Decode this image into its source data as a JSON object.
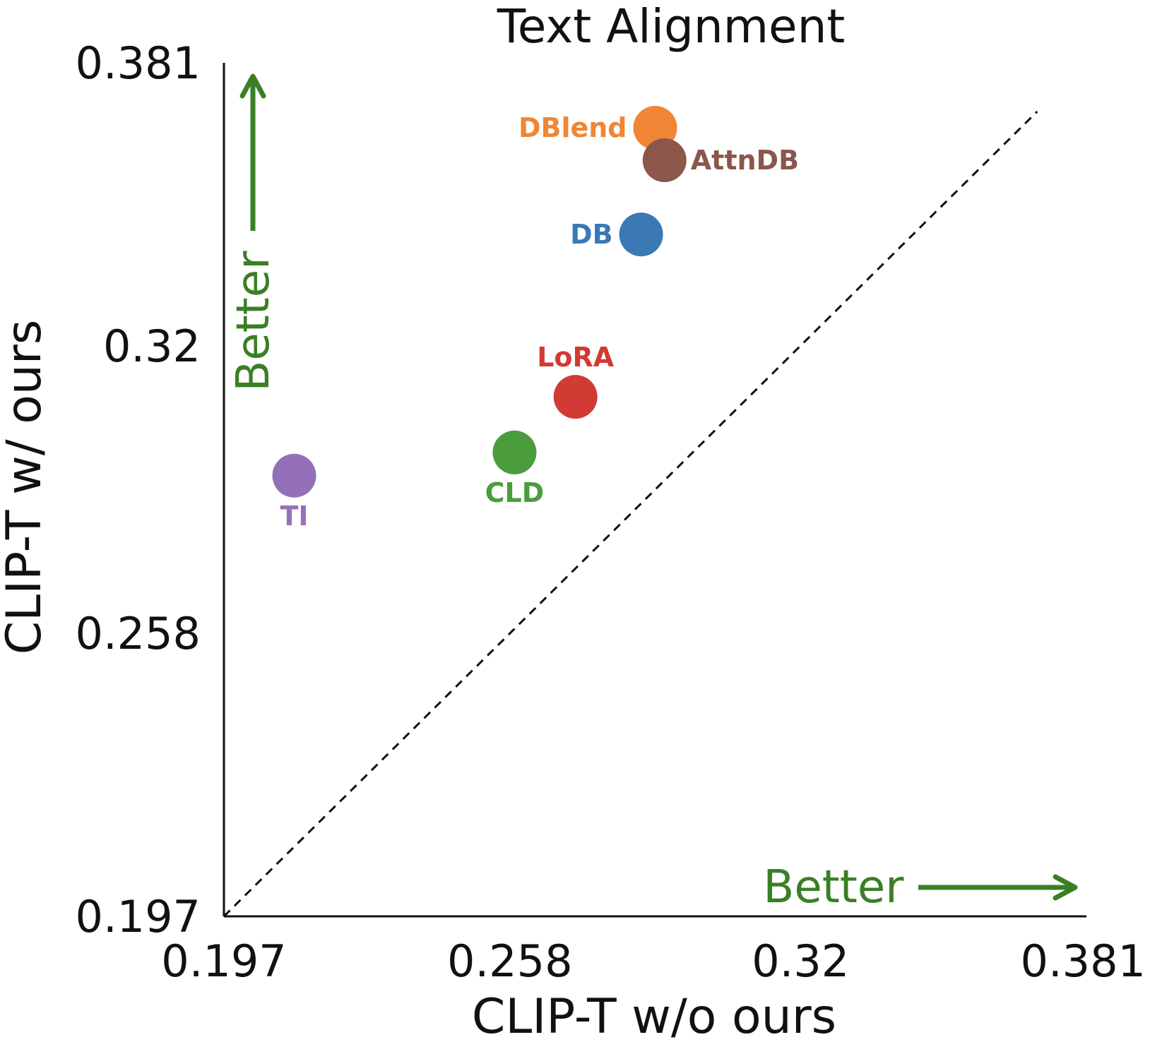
{
  "chart_data": {
    "type": "scatter",
    "title": "Text Alignment",
    "xlabel": "CLIP-T w/o ours",
    "ylabel": "CLIP-T w/ ours",
    "xlim": [
      0.197,
      0.381
    ],
    "ylim": [
      0.197,
      0.381
    ],
    "xticks": [
      "0.197",
      "0.258",
      "0.32",
      "0.381"
    ],
    "yticks": [
      "0.197",
      "0.258",
      "0.32",
      "0.381"
    ],
    "grid": false,
    "reference_line": "y = x (dashed)",
    "better_label": "Better",
    "better_color": "#3a7f26",
    "points": [
      {
        "label": "DBlend",
        "x": 0.289,
        "y": 0.367,
        "color": "#f08536"
      },
      {
        "label": "AttnDB",
        "x": 0.291,
        "y": 0.36,
        "color": "#8c564b"
      },
      {
        "label": "DB",
        "x": 0.286,
        "y": 0.344,
        "color": "#3a78b6"
      },
      {
        "label": "LoRA",
        "x": 0.272,
        "y": 0.309,
        "color": "#d23a34"
      },
      {
        "label": "CLD",
        "x": 0.259,
        "y": 0.297,
        "color": "#4b9c3d"
      },
      {
        "label": "TI",
        "x": 0.212,
        "y": 0.292,
        "color": "#9470bb"
      }
    ]
  }
}
